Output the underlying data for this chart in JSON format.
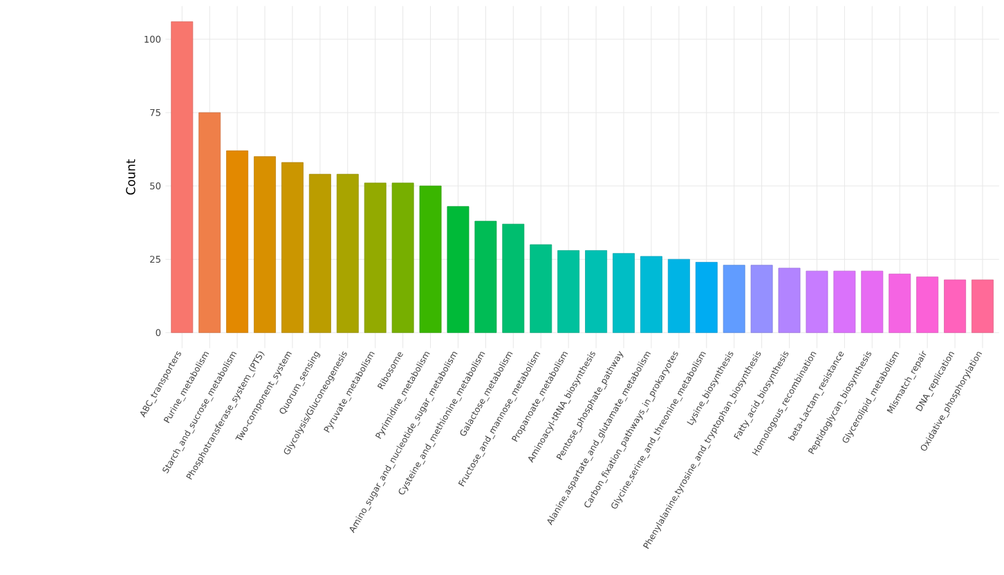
{
  "chart_data": {
    "type": "bar",
    "ylabel": "Count",
    "categories": [
      "ABC_transporters",
      "Purine_metabolism",
      "Starch_and_sucrose_metabolism",
      "Phosphotransferase_system_(PTS)",
      "Two-component_system",
      "Quorum_sensing",
      "Glycolysis/Gluconeogenesis",
      "Pyruvate_metabolism",
      "Ribosome",
      "Pyrimidine_metabolism",
      "Amino_sugar_and_nucleotide_sugar_metabolism",
      "Cysteine_and_methionine_metabolism",
      "Galactose_metabolism",
      "Fructose_and_mannose_metabolism",
      "Propanoate_metabolism",
      "Aminoacyl-tRNA_biosynthesis",
      "Pentose_phosphate_pathway",
      "Alanine,aspartate_and_glutamate_metabolism",
      "Carbon_fixation_pathways_in_prokaryotes",
      "Glycine,serine_and_threonine_metabolism",
      "Lysine_biosynthesis",
      "Phenylalanine,tyrosine_and_tryptophan_biosynthesis",
      "Fatty_acid_biosynthesis",
      "Homologous_recombination",
      "beta-Lactam_resistance",
      "Peptidoglycan_biosynthesis",
      "Glycerolipid_metabolism",
      "Mismatch_repair",
      "DNA_replication",
      "Oxidative_phosphorylation"
    ],
    "values": [
      106,
      75,
      62,
      60,
      58,
      54,
      54,
      51,
      51,
      50,
      43,
      38,
      37,
      30,
      28,
      28,
      27,
      26,
      25,
      24,
      23,
      23,
      22,
      21,
      21,
      21,
      20,
      19,
      18,
      18
    ],
    "colors": [
      "#F8766D",
      "#EF7F49",
      "#E38900",
      "#D89000",
      "#CB9600",
      "#BB9D00",
      "#A9A400",
      "#93AA00",
      "#77AF00",
      "#3AB600",
      "#00BA38",
      "#00BC55",
      "#00BE6F",
      "#00C087",
      "#00C19D",
      "#00C0B2",
      "#00BEC5",
      "#00BAD6",
      "#00B4E5",
      "#00ACF2",
      "#619CFF",
      "#9590FF",
      "#B284FF",
      "#C77CFF",
      "#DA72FB",
      "#E76BF3",
      "#F564E3",
      "#FB61D7",
      "#FF62BC",
      "#FF6A98"
    ],
    "ylim": [
      -5.3,
      111.3
    ],
    "yticks": [
      0,
      25,
      50,
      75,
      100
    ],
    "grid": true
  }
}
